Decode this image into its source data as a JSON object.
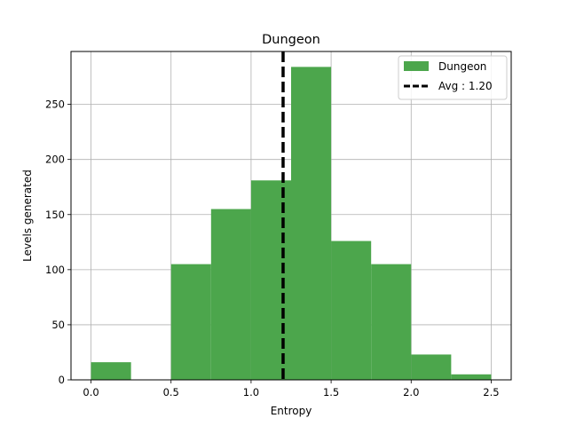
{
  "chart_data": {
    "type": "bar",
    "title": "Dungeon",
    "xlabel": "Entropy",
    "ylabel": "Levels generated",
    "xlim": [
      -0.125,
      2.625
    ],
    "ylim": [
      0,
      298
    ],
    "x_ticks": [
      0.0,
      0.5,
      1.0,
      1.5,
      2.0,
      2.5
    ],
    "x_tick_labels": [
      "0.0",
      "0.5",
      "1.0",
      "1.5",
      "2.0",
      "2.5"
    ],
    "y_ticks": [
      0,
      50,
      100,
      150,
      200,
      250
    ],
    "y_tick_labels": [
      "0",
      "50",
      "100",
      "150",
      "200",
      "250"
    ],
    "bins": [
      {
        "x0": 0.0,
        "x1": 0.25,
        "value": 16
      },
      {
        "x0": 0.25,
        "x1": 0.5,
        "value": 0
      },
      {
        "x0": 0.5,
        "x1": 0.75,
        "value": 105
      },
      {
        "x0": 0.75,
        "x1": 1.0,
        "value": 155
      },
      {
        "x0": 1.0,
        "x1": 1.25,
        "value": 181
      },
      {
        "x0": 1.25,
        "x1": 1.5,
        "value": 284
      },
      {
        "x0": 1.5,
        "x1": 1.75,
        "value": 126
      },
      {
        "x0": 1.75,
        "x1": 2.0,
        "value": 105
      },
      {
        "x0": 2.0,
        "x1": 2.25,
        "value": 23
      },
      {
        "x0": 2.25,
        "x1": 2.5,
        "value": 5
      }
    ],
    "mean_line": {
      "x": 1.2,
      "label": "Avg : 1.20"
    },
    "series": [
      {
        "name": "Dungeon",
        "color": "#4ca64c"
      }
    ],
    "grid": true,
    "legend_position": "top-right"
  }
}
